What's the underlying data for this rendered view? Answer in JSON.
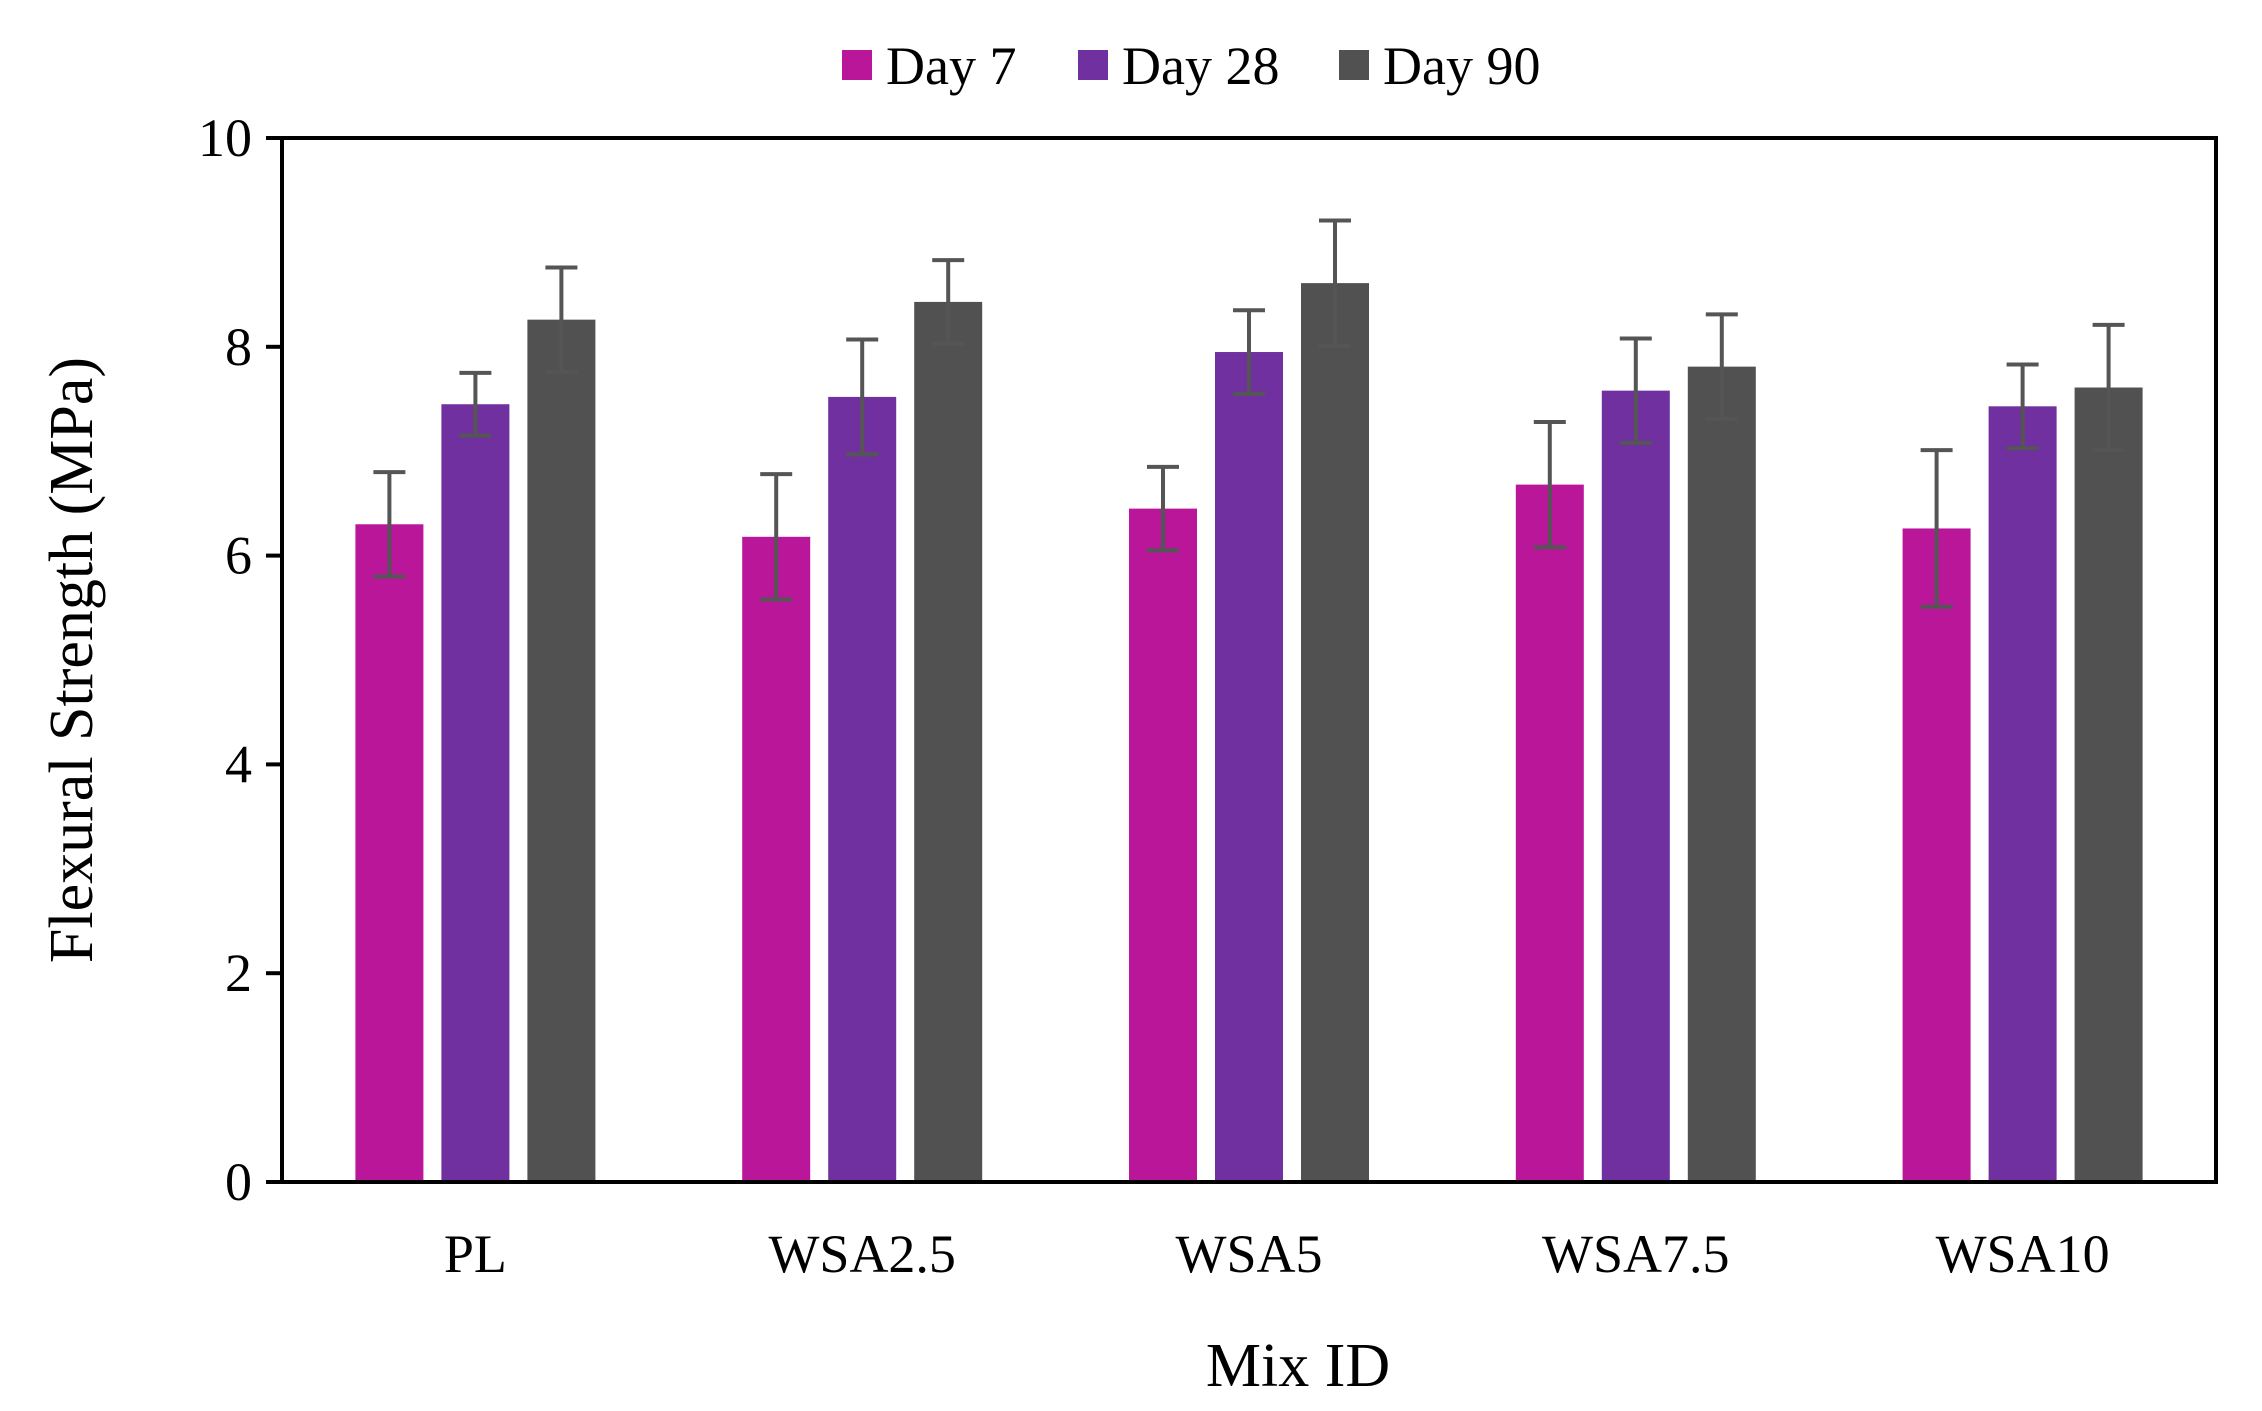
{
  "chart_data": {
    "type": "bar",
    "title": "",
    "xlabel": "Mix ID",
    "ylabel": "Flexural Strength (MPa)",
    "ylim": [
      0,
      10
    ],
    "yticks": [
      0,
      2,
      4,
      6,
      8,
      10
    ],
    "grid": false,
    "legend_position": "top-center",
    "categories": [
      "PL",
      "WSA2.5",
      "WSA5",
      "WSA7.5",
      "WSA10"
    ],
    "series": [
      {
        "name": "Day 7",
        "color": "#BA1699",
        "values": [
          6.3,
          6.18,
          6.45,
          6.68,
          6.26
        ],
        "errors": [
          0.5,
          0.6,
          0.4,
          0.6,
          0.75
        ]
      },
      {
        "name": "Day 28",
        "color": "#7030A0",
        "values": [
          7.45,
          7.52,
          7.95,
          7.58,
          7.43
        ],
        "errors": [
          0.3,
          0.55,
          0.4,
          0.5,
          0.4
        ]
      },
      {
        "name": "Day 90",
        "color": "#515151",
        "values": [
          8.26,
          8.43,
          8.61,
          7.81,
          7.61
        ],
        "errors": [
          0.5,
          0.4,
          0.6,
          0.5,
          0.6
        ]
      }
    ]
  }
}
